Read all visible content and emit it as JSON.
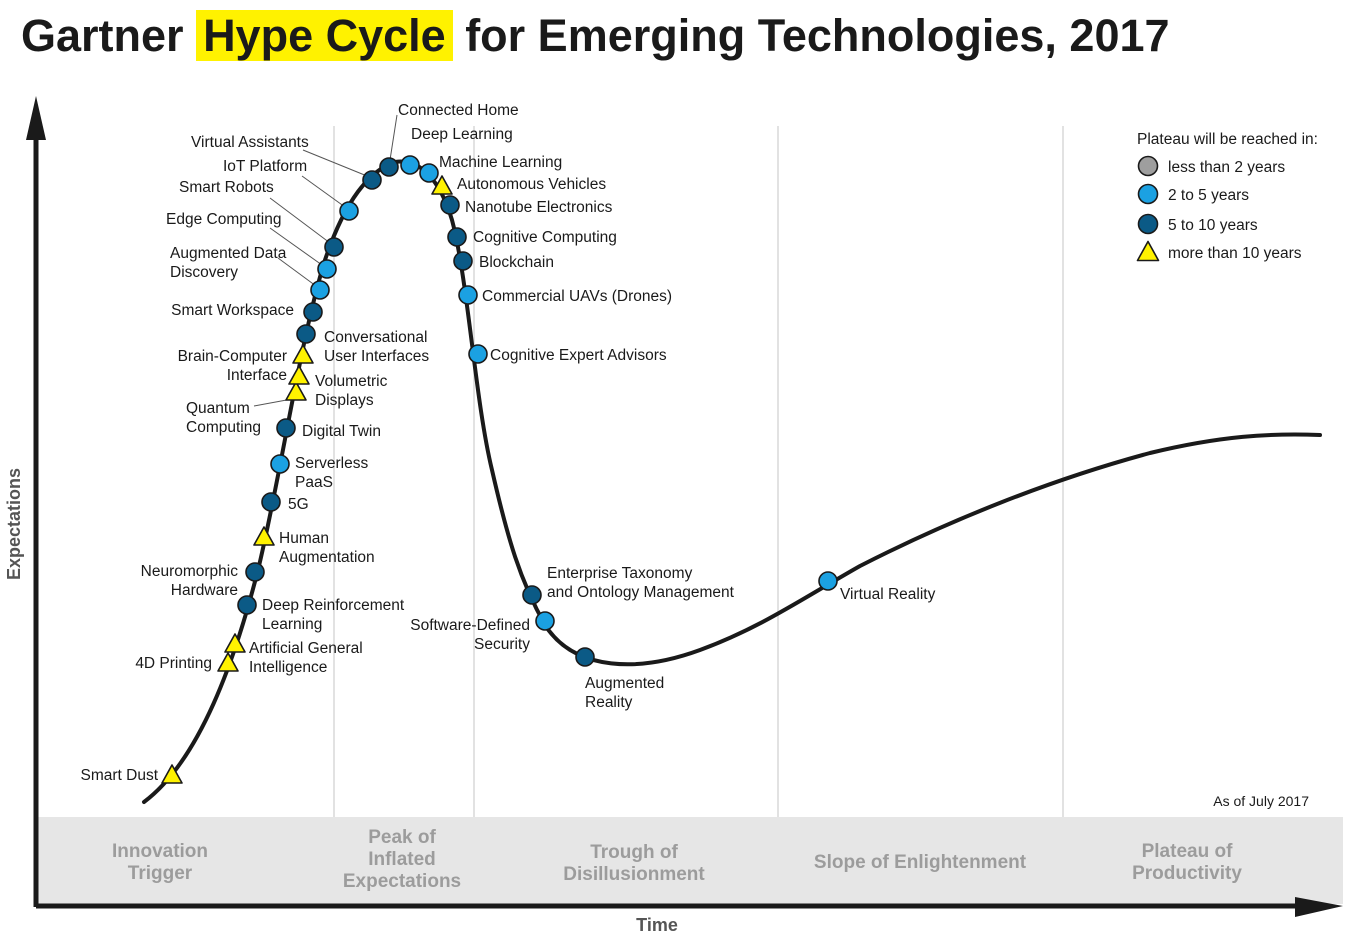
{
  "title": {
    "prefix": "Gartner ",
    "highlight": "Hype Cycle",
    "suffix": " for Emerging Technologies, 2017"
  },
  "axes": {
    "x_label": "Time",
    "y_label": "Expectations"
  },
  "as_of": "As of July 2017",
  "phases": [
    {
      "lines": [
        "Innovation",
        "Trigger"
      ]
    },
    {
      "lines": [
        "Peak of",
        "Inflated",
        "Expectations"
      ]
    },
    {
      "lines": [
        "Trough of",
        "Disillusionment"
      ]
    },
    {
      "lines": [
        "Slope of Enlightenment"
      ]
    },
    {
      "lines": [
        "Plateau of",
        "Productivity"
      ]
    }
  ],
  "legend": {
    "title": "Plateau will be reached in:",
    "items": [
      {
        "key": "lt2",
        "label": "less than 2 years"
      },
      {
        "key": "2to5",
        "label": "2 to 5 years"
      },
      {
        "key": "5to10",
        "label": "5 to 10 years"
      },
      {
        "key": "gt10",
        "label": "more than 10 years"
      }
    ]
  },
  "colors": {
    "lt2": "#9e9e9e",
    "2to5": "#1ba1e2",
    "5to10": "#0b5a86",
    "gt10": "#fff200",
    "curve": "#1a1a1a",
    "phase_band": "#e6e6e6",
    "title_highlight": "#fff200"
  },
  "technologies": [
    {
      "name": [
        "Smart Dust"
      ],
      "category": "gt10"
    },
    {
      "name": [
        "4D Printing"
      ],
      "category": "gt10"
    },
    {
      "name": [
        "Artificial General",
        "Intelligence"
      ],
      "category": "gt10"
    },
    {
      "name": [
        "Deep Reinforcement",
        "Learning"
      ],
      "category": "5to10"
    },
    {
      "name": [
        "Neuromorphic",
        "Hardware"
      ],
      "category": "5to10"
    },
    {
      "name": [
        "Human",
        "Augmentation"
      ],
      "category": "gt10"
    },
    {
      "name": [
        "5G"
      ],
      "category": "5to10"
    },
    {
      "name": [
        "Serverless",
        "PaaS"
      ],
      "category": "2to5"
    },
    {
      "name": [
        "Digital Twin"
      ],
      "category": "5to10"
    },
    {
      "name": [
        "Quantum",
        "Computing"
      ],
      "category": "gt10"
    },
    {
      "name": [
        "Volumetric",
        "Displays"
      ],
      "category": "gt10"
    },
    {
      "name": [
        "Brain-Computer",
        "Interface"
      ],
      "category": "gt10"
    },
    {
      "name": [
        "Conversational",
        "User Interfaces"
      ],
      "category": "5to10"
    },
    {
      "name": [
        "Smart Workspace"
      ],
      "category": "5to10"
    },
    {
      "name": [
        "Augmented Data",
        "Discovery"
      ],
      "category": "2to5"
    },
    {
      "name": [
        "Edge Computing"
      ],
      "category": "2to5"
    },
    {
      "name": [
        "Smart Robots"
      ],
      "category": "5to10"
    },
    {
      "name": [
        "IoT Platform"
      ],
      "category": "2to5"
    },
    {
      "name": [
        "Virtual Assistants"
      ],
      "category": "5to10"
    },
    {
      "name": [
        "Connected Home"
      ],
      "category": "5to10"
    },
    {
      "name": [
        "Deep Learning"
      ],
      "category": "2to5"
    },
    {
      "name": [
        "Machine Learning"
      ],
      "category": "2to5"
    },
    {
      "name": [
        "Autonomous Vehicles"
      ],
      "category": "gt10"
    },
    {
      "name": [
        "Nanotube Electronics"
      ],
      "category": "5to10"
    },
    {
      "name": [
        "Cognitive Computing"
      ],
      "category": "5to10"
    },
    {
      "name": [
        "Blockchain"
      ],
      "category": "5to10"
    },
    {
      "name": [
        "Commercial UAVs (Drones)"
      ],
      "category": "2to5"
    },
    {
      "name": [
        "Cognitive Expert Advisors"
      ],
      "category": "2to5"
    },
    {
      "name": [
        "Enterprise Taxonomy",
        "and Ontology Management"
      ],
      "category": "5to10"
    },
    {
      "name": [
        "Software-Defined",
        "Security"
      ],
      "category": "2to5"
    },
    {
      "name": [
        "Augmented",
        "Reality"
      ],
      "category": "5to10"
    },
    {
      "name": [
        "Virtual Reality"
      ],
      "category": "2to5"
    }
  ]
}
